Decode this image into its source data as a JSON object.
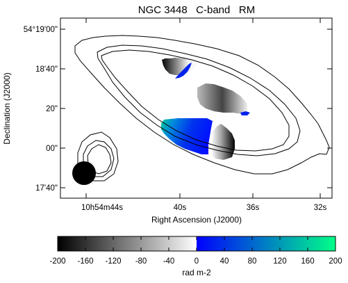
{
  "chart_data": {
    "type": "heatmap",
    "title": "NGC 3448   C-band   RM",
    "xlabel": "Right Ascension (J2000)",
    "ylabel": "Declination (J2000)",
    "x_ticks": [
      "10h54m44s",
      "40s",
      "36s",
      "32s"
    ],
    "y_ticks": [
      "54°19'00\"",
      "18'40\"",
      "20\"",
      "00\"",
      "17'40\""
    ],
    "colorbar": {
      "label": "rad m-2",
      "range": [
        -200,
        200
      ],
      "ticks": [
        "-200",
        "-160",
        "-120",
        "-80",
        "-40",
        "0",
        "40",
        "80",
        "120",
        "160",
        "200"
      ],
      "colors": {
        "negative_low": "#000000",
        "zero_low": "#ffffff",
        "zero_high": "#0000ff",
        "positive_high": "#00ff88"
      }
    },
    "rm_regions": [
      {
        "name": "north",
        "rm_range": [
          -200,
          80
        ]
      },
      {
        "name": "center",
        "rm_range": [
          -200,
          40
        ]
      },
      {
        "name": "south-west",
        "rm_range": [
          0,
          200
        ]
      },
      {
        "name": "south-east",
        "rm_range": [
          -200,
          0
        ]
      }
    ],
    "contours": "total intensity contours of galaxy and companion",
    "beam": "filled circle, lower-left"
  }
}
